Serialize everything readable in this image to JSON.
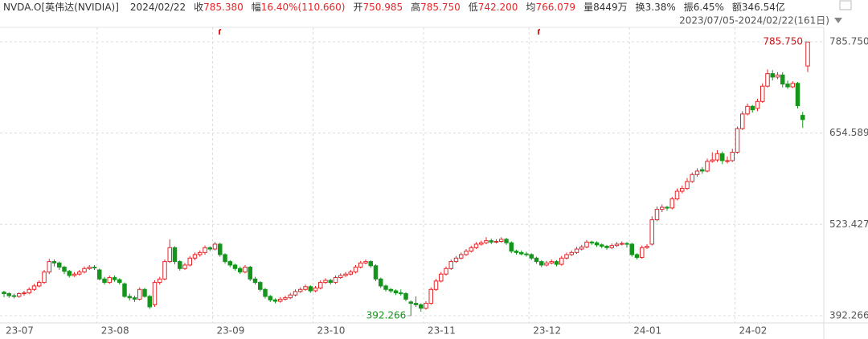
{
  "header": {
    "symbol": "NVDA.O[英伟达(NVIDIA)]",
    "date": "2024/02/22",
    "items": [
      {
        "label": "收",
        "value": "785.380"
      },
      {
        "label": "幅",
        "value": "16.40%(110.660)"
      },
      {
        "label": "开",
        "value": "750.985"
      },
      {
        "label": "高",
        "value": "785.750"
      },
      {
        "label": "低",
        "value": "742.200"
      },
      {
        "label": "均",
        "value": "766.079"
      },
      {
        "label": "量",
        "value": "8449万"
      },
      {
        "label": "换",
        "value": "3.38%"
      },
      {
        "label": "振",
        "value": "6.45%"
      },
      {
        "label": "额",
        "value": "346.54亿"
      }
    ],
    "range": "2023/07/05-2024/02/22(161日)"
  },
  "chart_data": {
    "type": "candlestick",
    "up_color": "#e3262a",
    "down_color": "#15951c",
    "grid": true,
    "ylim": [
      378.4,
      811.1
    ],
    "yticks": [
      392.266,
      523.427,
      654.589,
      {
        "value": 785.75,
        "label": "785.750"
      }
    ],
    "max_label": "785.750",
    "min_label": "392.266",
    "categories": [
      "23-07",
      null,
      null,
      null,
      null,
      null,
      null,
      null,
      null,
      null,
      null,
      null,
      null,
      null,
      null,
      null,
      null,
      null,
      null,
      "23-08",
      null,
      null,
      null,
      null,
      null,
      null,
      null,
      null,
      null,
      null,
      null,
      null,
      null,
      null,
      null,
      null,
      null,
      null,
      null,
      null,
      null,
      null,
      "23-09",
      null,
      null,
      null,
      null,
      null,
      null,
      null,
      null,
      null,
      null,
      null,
      null,
      null,
      null,
      null,
      null,
      null,
      null,
      null,
      "23-10",
      null,
      null,
      null,
      null,
      null,
      null,
      null,
      null,
      null,
      null,
      null,
      null,
      null,
      null,
      null,
      null,
      null,
      null,
      null,
      null,
      null,
      "23-11",
      null,
      null,
      null,
      null,
      null,
      null,
      null,
      null,
      null,
      null,
      null,
      null,
      null,
      null,
      null,
      null,
      null,
      null,
      null,
      null,
      "23-12",
      null,
      null,
      null,
      null,
      null,
      null,
      null,
      null,
      null,
      null,
      null,
      null,
      null,
      null,
      null,
      null,
      null,
      null,
      null,
      "24-01",
      null,
      null,
      null,
      null,
      null,
      null,
      null,
      null,
      null,
      null,
      null,
      null,
      null,
      null,
      null,
      null,
      null,
      null,
      null,
      null,
      "24-02",
      null,
      null,
      null,
      null,
      null,
      null,
      null,
      null,
      null,
      null,
      null,
      null,
      null,
      null
    ],
    "candles": [
      [
        426,
        428,
        419,
        424
      ],
      [
        424,
        426,
        418,
        421
      ],
      [
        421,
        424,
        417,
        420
      ],
      [
        420,
        426,
        418,
        424
      ],
      [
        424,
        428,
        421,
        425
      ],
      [
        425,
        433,
        423,
        430
      ],
      [
        430,
        438,
        428,
        435
      ],
      [
        435,
        443,
        433,
        440
      ],
      [
        440,
        458,
        438,
        455
      ],
      [
        455,
        474,
        452,
        470
      ],
      [
        470,
        473,
        463,
        468
      ],
      [
        468,
        470,
        458,
        462
      ],
      [
        462,
        464,
        452,
        456
      ],
      [
        456,
        458,
        447,
        450
      ],
      [
        450,
        455,
        448,
        452
      ],
      [
        452,
        458,
        450,
        455
      ],
      [
        455,
        463,
        453,
        460
      ],
      [
        460,
        465,
        458,
        462
      ],
      [
        462,
        465,
        458,
        461
      ],
      [
        458,
        460,
        443,
        445
      ],
      [
        445,
        448,
        437,
        440
      ],
      [
        440,
        450,
        438,
        447
      ],
      [
        447,
        450,
        441,
        444
      ],
      [
        444,
        446,
        437,
        440
      ],
      [
        438,
        440,
        418,
        420
      ],
      [
        420,
        424,
        414,
        418
      ],
      [
        418,
        421,
        412,
        416
      ],
      [
        416,
        433,
        414,
        430
      ],
      [
        430,
        432,
        418,
        420
      ],
      [
        420,
        422,
        402,
        405
      ],
      [
        408,
        443,
        405,
        440
      ],
      [
        440,
        448,
        437,
        445
      ],
      [
        445,
        473,
        443,
        470
      ],
      [
        470,
        502,
        468,
        490
      ],
      [
        490,
        492,
        466,
        470
      ],
      [
        470,
        472,
        457,
        460
      ],
      [
        460,
        468,
        458,
        465
      ],
      [
        465,
        478,
        463,
        475
      ],
      [
        475,
        483,
        472,
        480
      ],
      [
        480,
        486,
        477,
        483
      ],
      [
        483,
        493,
        480,
        490
      ],
      [
        490,
        492,
        485,
        488
      ],
      [
        488,
        498,
        486,
        495
      ],
      [
        495,
        497,
        477,
        480
      ],
      [
        480,
        482,
        467,
        470
      ],
      [
        470,
        472,
        462,
        465
      ],
      [
        465,
        467,
        457,
        460
      ],
      [
        460,
        463,
        452,
        455
      ],
      [
        455,
        465,
        453,
        462
      ],
      [
        462,
        464,
        442,
        445
      ],
      [
        445,
        448,
        437,
        440
      ],
      [
        440,
        442,
        427,
        430
      ],
      [
        430,
        432,
        417,
        420
      ],
      [
        420,
        422,
        412,
        415
      ],
      [
        415,
        417,
        410,
        413
      ],
      [
        413,
        419,
        411,
        416
      ],
      [
        416,
        421,
        414,
        418
      ],
      [
        418,
        425,
        416,
        422
      ],
      [
        422,
        430,
        420,
        427
      ],
      [
        427,
        433,
        425,
        430
      ],
      [
        430,
        437,
        428,
        434
      ],
      [
        434,
        436,
        425,
        428
      ],
      [
        428,
        435,
        426,
        432
      ],
      [
        432,
        443,
        430,
        440
      ],
      [
        440,
        446,
        438,
        443
      ],
      [
        443,
        445,
        437,
        440
      ],
      [
        440,
        450,
        438,
        447
      ],
      [
        447,
        453,
        445,
        450
      ],
      [
        450,
        455,
        448,
        452
      ],
      [
        452,
        458,
        450,
        455
      ],
      [
        455,
        465,
        453,
        462
      ],
      [
        462,
        471,
        460,
        468
      ],
      [
        468,
        473,
        466,
        470
      ],
      [
        470,
        472,
        461,
        464
      ],
      [
        464,
        466,
        442,
        445
      ],
      [
        445,
        447,
        432,
        435
      ],
      [
        435,
        437,
        427,
        430
      ],
      [
        430,
        432,
        425,
        428
      ],
      [
        428,
        430,
        422,
        425
      ],
      [
        425,
        430,
        421,
        424
      ],
      [
        424,
        426,
        413,
        416
      ],
      [
        412,
        414,
        392.266,
        410
      ],
      [
        410,
        420,
        405,
        408
      ],
      [
        408,
        410,
        398,
        403
      ],
      [
        403,
        413,
        401,
        410
      ],
      [
        410,
        433,
        408,
        430
      ],
      [
        430,
        445,
        428,
        442
      ],
      [
        442,
        455,
        440,
        452
      ],
      [
        452,
        463,
        450,
        460
      ],
      [
        460,
        473,
        458,
        470
      ],
      [
        470,
        478,
        468,
        475
      ],
      [
        475,
        483,
        473,
        480
      ],
      [
        480,
        488,
        478,
        485
      ],
      [
        485,
        493,
        483,
        490
      ],
      [
        490,
        498,
        488,
        495
      ],
      [
        495,
        500,
        493,
        497
      ],
      [
        497,
        505,
        495,
        500
      ],
      [
        500,
        503,
        495,
        498
      ],
      [
        498,
        502,
        496,
        499
      ],
      [
        499,
        505,
        497,
        502
      ],
      [
        502,
        504,
        494,
        497
      ],
      [
        497,
        499,
        482,
        485
      ],
      [
        485,
        487,
        480,
        483
      ],
      [
        483,
        486,
        479,
        481
      ],
      [
        481,
        484,
        477,
        480
      ],
      [
        480,
        482,
        472,
        475
      ],
      [
        475,
        477,
        467,
        470
      ],
      [
        470,
        472,
        462,
        465
      ],
      [
        465,
        471,
        463,
        468
      ],
      [
        468,
        473,
        466,
        470
      ],
      [
        470,
        472,
        463,
        466
      ],
      [
        466,
        478,
        464,
        475
      ],
      [
        475,
        483,
        473,
        480
      ],
      [
        480,
        486,
        478,
        483
      ],
      [
        483,
        491,
        481,
        488
      ],
      [
        488,
        494,
        486,
        491
      ],
      [
        491,
        501,
        489,
        498
      ],
      [
        498,
        500,
        494,
        497
      ],
      [
        497,
        499,
        491,
        494
      ],
      [
        494,
        496,
        489,
        492
      ],
      [
        492,
        494,
        487,
        490
      ],
      [
        490,
        496,
        488,
        493
      ],
      [
        493,
        498,
        491,
        495
      ],
      [
        495,
        499,
        493,
        496
      ],
      [
        496,
        498,
        490,
        495
      ],
      [
        495,
        497,
        477,
        480
      ],
      [
        480,
        482,
        473,
        476
      ],
      [
        476,
        493,
        474,
        490
      ],
      [
        490,
        495,
        488,
        492
      ],
      [
        495,
        535,
        493,
        530
      ],
      [
        530,
        549,
        528,
        545
      ],
      [
        545,
        552,
        541,
        548
      ],
      [
        548,
        550,
        543,
        547
      ],
      [
        547,
        563,
        545,
        560
      ],
      [
        560,
        575,
        558,
        571
      ],
      [
        571,
        579,
        568,
        575
      ],
      [
        575,
        590,
        573,
        585
      ],
      [
        585,
        598,
        583,
        595
      ],
      [
        595,
        604,
        592,
        600
      ],
      [
        602,
        606,
        596,
        600
      ],
      [
        600,
        618,
        598,
        614
      ],
      [
        614,
        627,
        612,
        616
      ],
      [
        616,
        630,
        613,
        625
      ],
      [
        625,
        628,
        610,
        615
      ],
      [
        615,
        621,
        611,
        615
      ],
      [
        615,
        632,
        613,
        627
      ],
      [
        627,
        664,
        625,
        661
      ],
      [
        661,
        686,
        659,
        682
      ],
      [
        682,
        697,
        680,
        693
      ],
      [
        693,
        695,
        684,
        688
      ],
      [
        690,
        704,
        686,
        700
      ],
      [
        700,
        726,
        698,
        722
      ],
      [
        722,
        746,
        720,
        740
      ],
      [
        740,
        745,
        730,
        735
      ],
      [
        735,
        742,
        732,
        738
      ],
      [
        738,
        742,
        720,
        725
      ],
      [
        725,
        730,
        718,
        721
      ],
      [
        721,
        729,
        719,
        726
      ],
      [
        726,
        728,
        690,
        694
      ],
      [
        680,
        685,
        662,
        674
      ],
      [
        750.985,
        785.75,
        742.2,
        785.38
      ]
    ]
  }
}
